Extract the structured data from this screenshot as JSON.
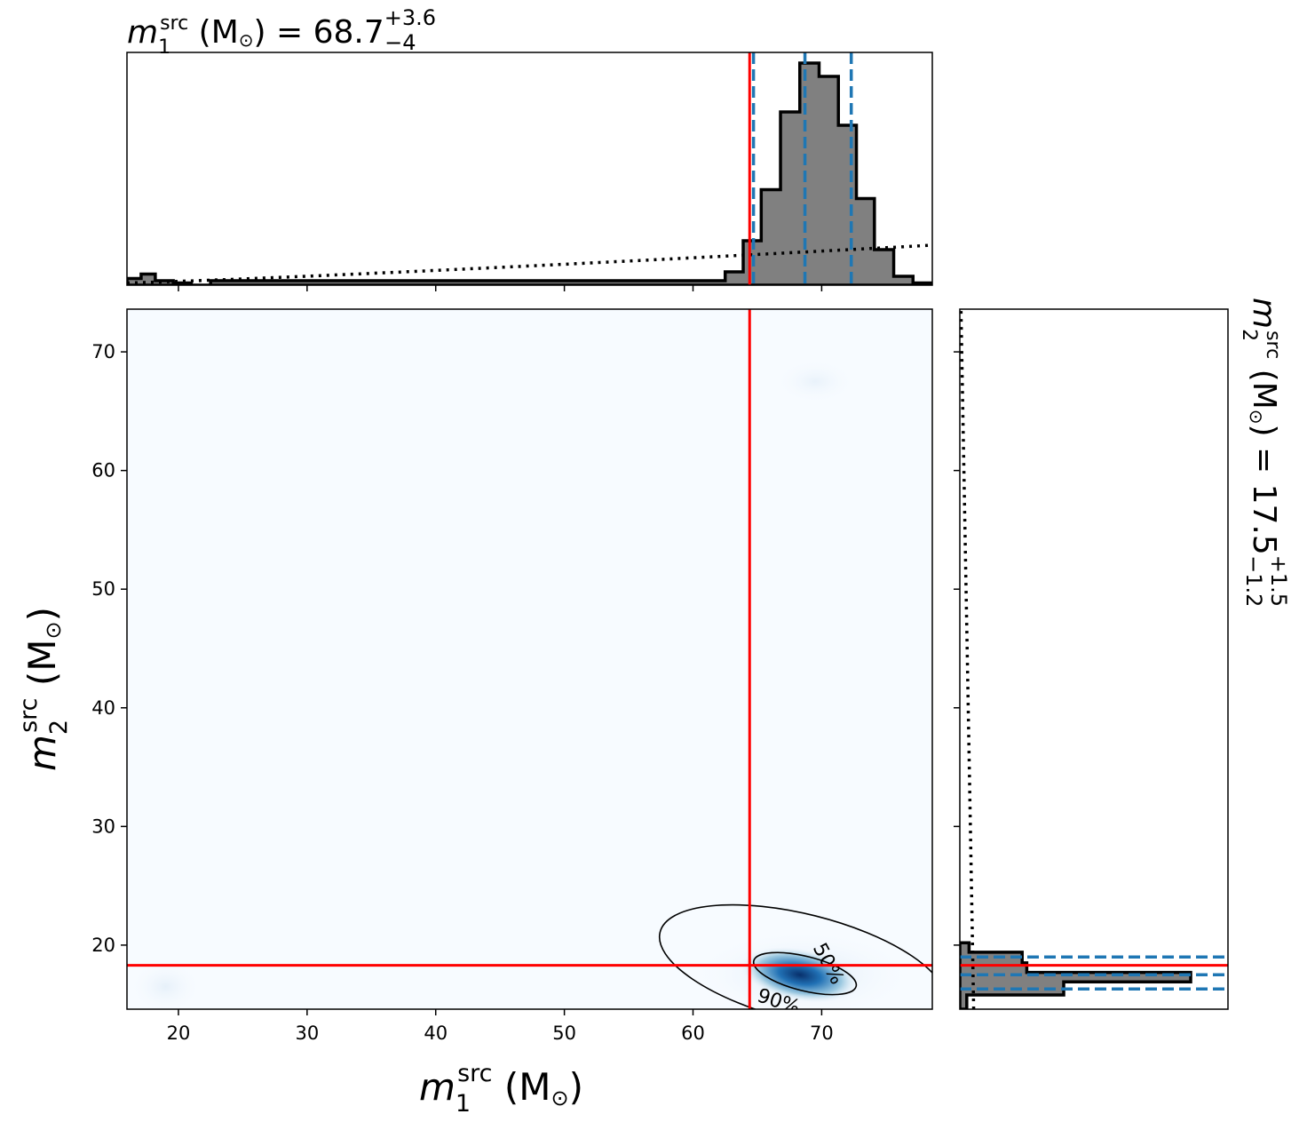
{
  "chart_data": [
    {
      "type": "heatmap",
      "panel": "joint",
      "xlabel": "m1src",
      "ylabel": "m2src",
      "xlim": [
        16,
        78.6
      ],
      "ylim": [
        14.6,
        73.6
      ],
      "xticks": [
        20,
        30,
        40,
        50,
        60,
        70
      ],
      "yticks": [
        20,
        30,
        40,
        50,
        60,
        70
      ],
      "colormap": "Blues",
      "density_peak": {
        "x": 68.7,
        "y": 17.5
      },
      "contours": [
        {
          "label": "50%",
          "cx": 68.7,
          "cy": 17.6,
          "rx": 4.1,
          "ry": 1.45
        },
        {
          "label": "90%",
          "cx": 68.5,
          "cy": 18.1,
          "rx": 11.4,
          "ry": 4.5
        }
      ],
      "reference": {
        "x": 64.4,
        "y": 18.3,
        "color": "#ff0000"
      }
    },
    {
      "type": "bar",
      "panel": "marginal-m1",
      "title": {
        "sym": "m",
        "sub": "1",
        "sup": "src",
        "unit": " (M",
        "rest": ") = 68.7",
        "up": "+3.6",
        "down": "−4"
      },
      "xlim": [
        16,
        78.6
      ],
      "bin_edges": [
        16,
        17.1,
        18.2,
        19.6,
        21,
        22.5,
        62.5,
        63.9,
        65.3,
        66.8,
        68.3,
        69.8,
        71.3,
        72.7,
        74.1,
        75.6,
        77.1,
        78.6
      ],
      "hist": [
        0.03,
        0.05,
        0.02,
        0.01,
        0,
        0.02,
        0.06,
        0.2,
        0.43,
        0.78,
        1.0,
        0.94,
        0.72,
        0.39,
        0.16,
        0.04,
        0.01
      ],
      "quantiles": {
        "low": 64.7,
        "median": 68.7,
        "high": 72.3
      },
      "reference": 64.4,
      "prior_line_style": "dotted"
    },
    {
      "type": "bar",
      "panel": "marginal-m2",
      "label": {
        "sym": "m",
        "sub": "2",
        "sup": "src",
        "unit": " (M",
        "rest": ") = 17.5",
        "up": "+1.5",
        "down": "−1.2"
      },
      "ylim": [
        14.6,
        73.6
      ],
      "bin_edges": [
        14.6,
        15.8,
        16.9,
        17.7,
        18.5,
        19.4,
        20.2
      ],
      "hist": [
        0.03,
        0.45,
        1.0,
        0.29,
        0.27,
        0.04
      ],
      "quantiles": {
        "low": 16.3,
        "median": 17.5,
        "high": 19.0
      },
      "reference": 18.3,
      "prior_line_style": "dotted"
    }
  ],
  "colors": {
    "reference": "#ff0000",
    "quantile": "#1f77b4",
    "hist_fill": "#808080",
    "heat_low": "#f7fbff",
    "heat_high": "#08306b"
  }
}
